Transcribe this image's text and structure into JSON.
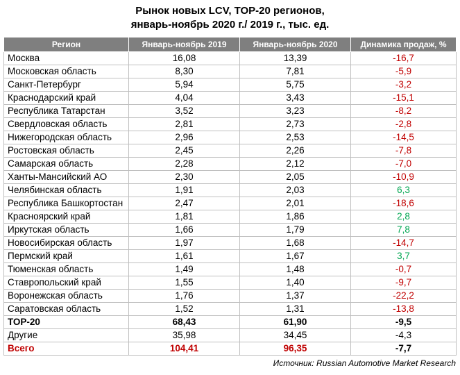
{
  "title": {
    "line1": "Рынок новых LCV, ТОР-20 регионов,",
    "line2": "январь-ноябрь 2020 г./ 2019 г., тыс. ед."
  },
  "table": {
    "headers": [
      "Регион",
      "Январь-ноябрь 2019",
      "Январь-ноябрь 2020",
      "Динамика продаж, %"
    ],
    "rows": [
      {
        "region": "Москва",
        "y2019": "16,08",
        "y2020": "13,39",
        "change": "-16,7"
      },
      {
        "region": "Московская область",
        "y2019": "8,30",
        "y2020": "7,81",
        "change": "-5,9"
      },
      {
        "region": "Санкт-Петербург",
        "y2019": "5,94",
        "y2020": "5,75",
        "change": "-3,2"
      },
      {
        "region": "Краснодарский край",
        "y2019": "4,04",
        "y2020": "3,43",
        "change": "-15,1"
      },
      {
        "region": "Республика Татарстан",
        "y2019": "3,52",
        "y2020": "3,23",
        "change": "-8,2"
      },
      {
        "region": "Свердловская область",
        "y2019": "2,81",
        "y2020": "2,73",
        "change": "-2,8"
      },
      {
        "region": "Нижегородская область",
        "y2019": "2,96",
        "y2020": "2,53",
        "change": "-14,5"
      },
      {
        "region": "Ростовская область",
        "y2019": "2,45",
        "y2020": "2,26",
        "change": "-7,8"
      },
      {
        "region": "Самарская область",
        "y2019": "2,28",
        "y2020": "2,12",
        "change": "-7,0"
      },
      {
        "region": "Ханты-Мансийский АО",
        "y2019": "2,30",
        "y2020": "2,05",
        "change": "-10,9"
      },
      {
        "region": "Челябинская область",
        "y2019": "1,91",
        "y2020": "2,03",
        "change": "6,3"
      },
      {
        "region": "Республика Башкортостан",
        "y2019": "2,47",
        "y2020": "2,01",
        "change": "-18,6"
      },
      {
        "region": "Красноярский край",
        "y2019": "1,81",
        "y2020": "1,86",
        "change": "2,8"
      },
      {
        "region": "Иркутская область",
        "y2019": "1,66",
        "y2020": "1,79",
        "change": "7,8"
      },
      {
        "region": "Новосибирская область",
        "y2019": "1,97",
        "y2020": "1,68",
        "change": "-14,7"
      },
      {
        "region": "Пермский край",
        "y2019": "1,61",
        "y2020": "1,67",
        "change": "3,7"
      },
      {
        "region": "Тюменская область",
        "y2019": "1,49",
        "y2020": "1,48",
        "change": "-0,7"
      },
      {
        "region": "Ставропольский край",
        "y2019": "1,55",
        "y2020": "1,40",
        "change": "-9,7"
      },
      {
        "region": "Воронежская область",
        "y2019": "1,76",
        "y2020": "1,37",
        "change": "-22,2"
      },
      {
        "region": "Саратовская область",
        "y2019": "1,52",
        "y2020": "1,31",
        "change": "-13,8"
      }
    ],
    "summary": [
      {
        "region": "ТОР-20",
        "y2019": "68,43",
        "y2020": "61,90",
        "change": "-9,5",
        "style": "bold"
      },
      {
        "region": "Другие",
        "y2019": "35,98",
        "y2020": "34,45",
        "change": "-4,3",
        "style": "plain"
      },
      {
        "region": "Всего",
        "y2019": "104,41",
        "y2020": "96,35",
        "change": "-7,7",
        "style": "total"
      }
    ]
  },
  "colors": {
    "negative": "#c00000",
    "positive": "#00a651",
    "header_bg": "#7f7f7f"
  },
  "source": "Источник: Russian Automotive Market Research"
}
